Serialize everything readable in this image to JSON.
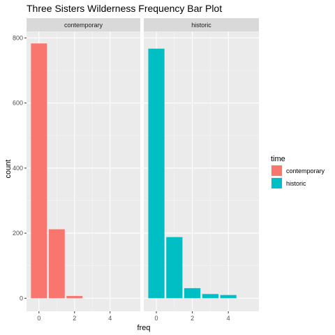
{
  "chart_data": {
    "type": "bar",
    "title": "Three Sisters Wilderness Frequency Bar Plot",
    "xlabel": "freq",
    "ylabel": "count",
    "xlim": [
      -0.7,
      5.7
    ],
    "ylim": [
      -40,
      820
    ],
    "x_ticks": [
      0,
      2,
      4
    ],
    "x_tick_labels": [
      "0",
      "2",
      "4"
    ],
    "y_ticks": [
      0,
      200,
      400,
      600,
      800
    ],
    "y_tick_labels": [
      "0",
      "200",
      "400",
      "600",
      "800"
    ],
    "grid": true,
    "legend": {
      "title": "time",
      "position": "right",
      "entries": [
        {
          "label": "contemporary",
          "color": "#F8766D"
        },
        {
          "label": "historic",
          "color": "#00BFC4"
        }
      ]
    },
    "facets": [
      {
        "label": "contemporary",
        "color": "#F8766D",
        "x": [
          0,
          1,
          2
        ],
        "values": [
          783,
          212,
          7
        ]
      },
      {
        "label": "historic",
        "color": "#00BFC4",
        "x": [
          0,
          1,
          2,
          3,
          4
        ],
        "values": [
          767,
          188,
          31,
          13,
          10
        ]
      }
    ]
  }
}
